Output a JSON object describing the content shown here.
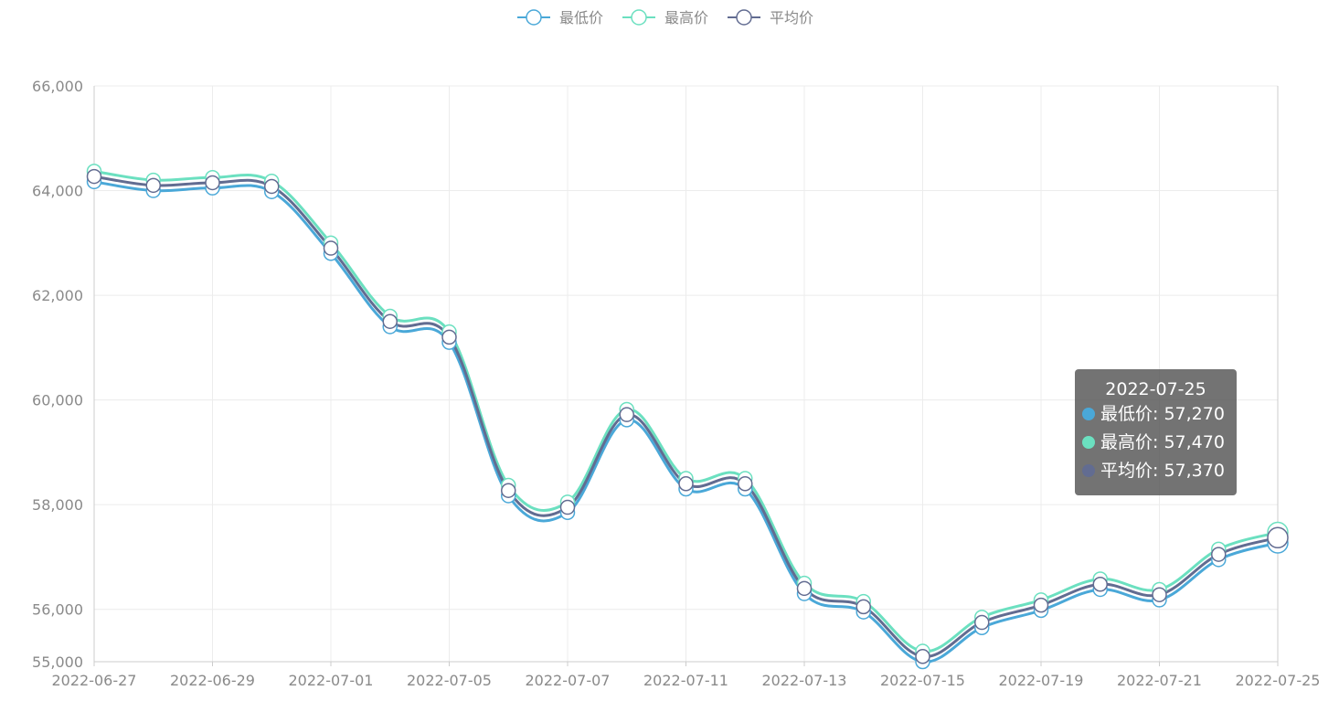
{
  "chart_data": {
    "type": "line",
    "x": [
      "2022-06-27",
      "2022-06-28",
      "2022-06-29",
      "2022-06-30",
      "2022-07-01",
      "2022-07-04",
      "2022-07-05",
      "2022-07-06",
      "2022-07-07",
      "2022-07-08",
      "2022-07-11",
      "2022-07-12",
      "2022-07-13",
      "2022-07-14",
      "2022-07-15",
      "2022-07-18",
      "2022-07-19",
      "2022-07-20",
      "2022-07-21",
      "2022-07-22",
      "2022-07-25"
    ],
    "tick_labels": [
      "2022-06-27",
      "2022-06-29",
      "2022-07-01",
      "2022-07-05",
      "2022-07-07",
      "2022-07-11",
      "2022-07-13",
      "2022-07-15",
      "2022-07-19",
      "2022-07-21",
      "2022-07-25"
    ],
    "series": [
      {
        "name": "最低价",
        "color": "#4aa8d8",
        "values": [
          64170,
          64000,
          64050,
          63980,
          62800,
          61400,
          61100,
          58170,
          57850,
          59620,
          58300,
          58300,
          56300,
          55950,
          55000,
          55650,
          55980,
          56380,
          56180,
          56950,
          57270
        ]
      },
      {
        "name": "最高价",
        "color": "#6be0c0",
        "values": [
          64370,
          64200,
          64250,
          64180,
          63000,
          61600,
          61300,
          58370,
          58050,
          59820,
          58500,
          58500,
          56500,
          56150,
          55200,
          55850,
          56180,
          56580,
          56380,
          57150,
          57470
        ]
      },
      {
        "name": "平均价",
        "color": "#626c91",
        "values": [
          64270,
          64100,
          64150,
          64080,
          62900,
          61500,
          61200,
          58270,
          57950,
          59720,
          58400,
          58400,
          56400,
          56050,
          55100,
          55750,
          56080,
          56480,
          56280,
          57050,
          57370
        ]
      }
    ],
    "ylim": [
      55000,
      66000
    ],
    "yticks": [
      55000,
      56000,
      58000,
      60000,
      62000,
      64000,
      66000
    ],
    "ytick_labels": [
      "55,000",
      "56,000",
      "58,000",
      "60,000",
      "62,000",
      "64,000",
      "66,000"
    ],
    "grid": true,
    "legend_position": "top-center",
    "title": "",
    "xlabel": "",
    "ylabel": ""
  },
  "tooltip": {
    "title": "2022-07-25",
    "rows": [
      {
        "label": "最低价: 57,270",
        "color": "#4aa8d8"
      },
      {
        "label": "最高价: 57,470",
        "color": "#6be0c0"
      },
      {
        "label": "平均价: 57,370",
        "color": "#626c91"
      }
    ]
  }
}
